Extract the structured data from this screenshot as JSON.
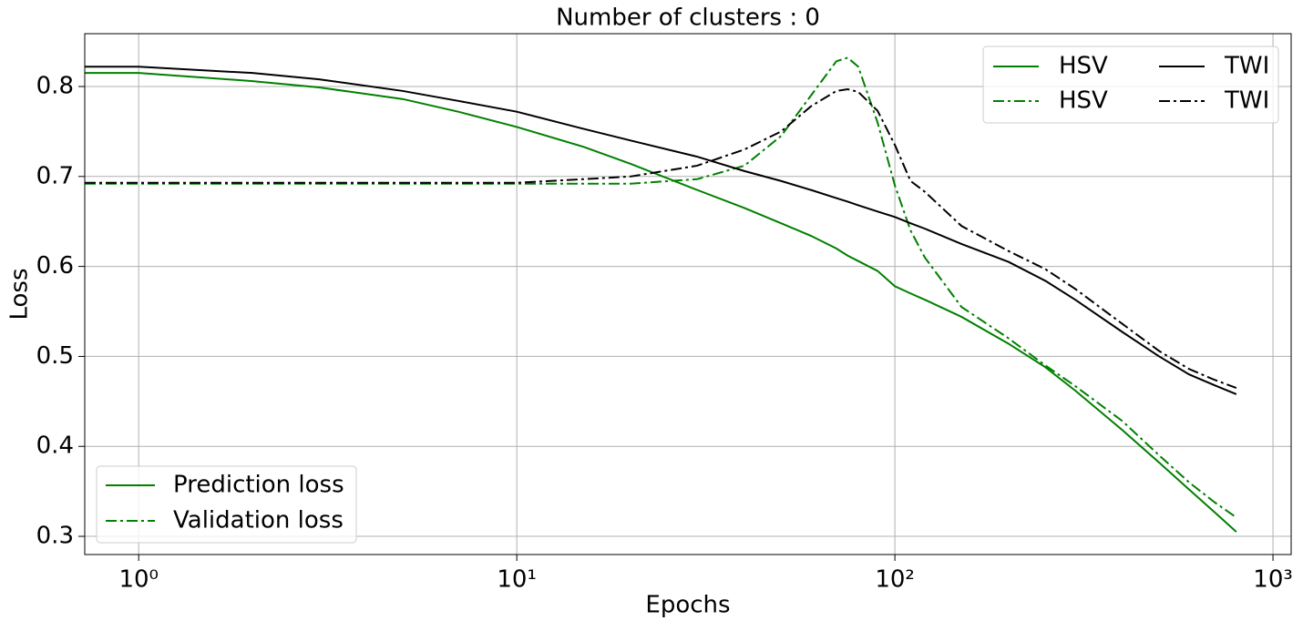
{
  "chart_data": {
    "type": "line",
    "title": "Number of clusters : 0",
    "x_label": "Epochs",
    "y_label": "Loss",
    "x_scale": "log",
    "grid": true,
    "xlim": [
      0.72,
      1117
    ],
    "ylim": [
      0.2798,
      0.8587
    ],
    "xticks": [
      {
        "value": 1,
        "label": "10⁰"
      },
      {
        "value": 10,
        "label": "10¹"
      },
      {
        "value": 100,
        "label": "10²"
      },
      {
        "value": 1000,
        "label": "10³"
      }
    ],
    "yticks": [
      0.3,
      0.4,
      0.5,
      0.6,
      0.7,
      0.8
    ],
    "legend": "upper right",
    "legend_columns": 2,
    "x": [
      0.72,
      1,
      2,
      3,
      5,
      7,
      10,
      15,
      20,
      30,
      40,
      50,
      60,
      70,
      75,
      80,
      90,
      100,
      110,
      120,
      150,
      200,
      250,
      300,
      400,
      500,
      600,
      700,
      800
    ],
    "series": [
      {
        "name": "HSV",
        "color": "#008000",
        "dash": "solid",
        "values": [
          0.815,
          0.815,
          0.806,
          0.799,
          0.786,
          0.772,
          0.755,
          0.733,
          0.714,
          0.685,
          0.665,
          0.648,
          0.634,
          0.62,
          0.612,
          0.606,
          0.595,
          0.578,
          0.57,
          0.563,
          0.544,
          0.514,
          0.488,
          0.462,
          0.418,
          0.382,
          0.352,
          0.327,
          0.305
        ]
      },
      {
        "name": "HSV",
        "color": "#008000",
        "dash": "dashdot",
        "values": [
          0.692,
          0.692,
          0.692,
          0.692,
          0.692,
          0.692,
          0.692,
          0.692,
          0.692,
          0.697,
          0.712,
          0.745,
          0.79,
          0.828,
          0.832,
          0.822,
          0.76,
          0.69,
          0.64,
          0.61,
          0.555,
          0.52,
          0.49,
          0.467,
          0.428,
          0.39,
          0.36,
          0.338,
          0.321
        ]
      },
      {
        "name": "TWI",
        "color": "#000000",
        "dash": "solid",
        "values": [
          0.822,
          0.822,
          0.815,
          0.808,
          0.795,
          0.784,
          0.772,
          0.753,
          0.74,
          0.722,
          0.706,
          0.695,
          0.685,
          0.676,
          0.672,
          0.668,
          0.661,
          0.655,
          0.648,
          0.642,
          0.625,
          0.605,
          0.584,
          0.563,
          0.527,
          0.5,
          0.48,
          0.468,
          0.458
        ]
      },
      {
        "name": "TWI",
        "color": "#000000",
        "dash": "dashdot",
        "values": [
          0.693,
          0.693,
          0.693,
          0.693,
          0.693,
          0.693,
          0.693,
          0.697,
          0.7,
          0.712,
          0.73,
          0.75,
          0.778,
          0.795,
          0.797,
          0.794,
          0.773,
          0.735,
          0.695,
          0.683,
          0.645,
          0.617,
          0.597,
          0.575,
          0.536,
          0.506,
          0.486,
          0.474,
          0.465
        ]
      }
    ],
    "style_legend": {
      "position": "lower left",
      "color": "#008000",
      "entries": [
        {
          "label": "Prediction loss",
          "dash": "solid"
        },
        {
          "label": "Validation loss",
          "dash": "dashdot"
        }
      ]
    }
  }
}
